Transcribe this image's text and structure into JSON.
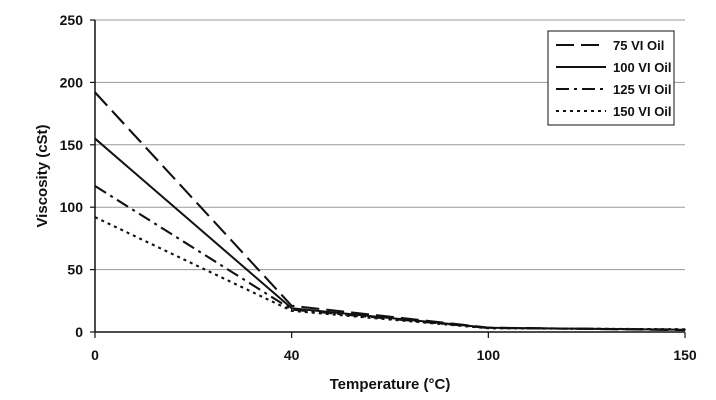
{
  "chart_data": {
    "type": "line",
    "title": "",
    "xlabel": "Temperature (°C)",
    "ylabel": "Viscosity (cSt)",
    "x_positions": [
      0,
      40,
      100,
      150
    ],
    "x_tick_labels": [
      "0",
      "40",
      "100",
      "150"
    ],
    "x_axis_note": "x ticks are evenly spaced category positions",
    "ylim": [
      0,
      250
    ],
    "y_ticks": [
      0,
      50,
      100,
      150,
      200,
      250
    ],
    "grid": true,
    "legend_position": "top-right",
    "series": [
      {
        "name": "75 VI Oil",
        "x": [
          0,
          40,
          100,
          150
        ],
        "y": [
          192,
          21,
          3.5,
          1.5
        ],
        "dash": "long-dash"
      },
      {
        "name": "100 VI Oil",
        "x": [
          0,
          40,
          100,
          150
        ],
        "y": [
          155,
          19,
          3.4,
          1.8
        ],
        "dash": "solid"
      },
      {
        "name": "125 VI Oil",
        "x": [
          0,
          40,
          100,
          150
        ],
        "y": [
          117,
          18,
          3.2,
          2.0
        ],
        "dash": "dash-dot"
      },
      {
        "name": "150 VI Oil",
        "x": [
          0,
          40,
          100,
          150
        ],
        "y": [
          92,
          17,
          3.0,
          2.2
        ],
        "dash": "dotted"
      }
    ],
    "colors": {
      "line": "#111111",
      "grid": "#9a9a9a",
      "background": "#ffffff"
    }
  }
}
